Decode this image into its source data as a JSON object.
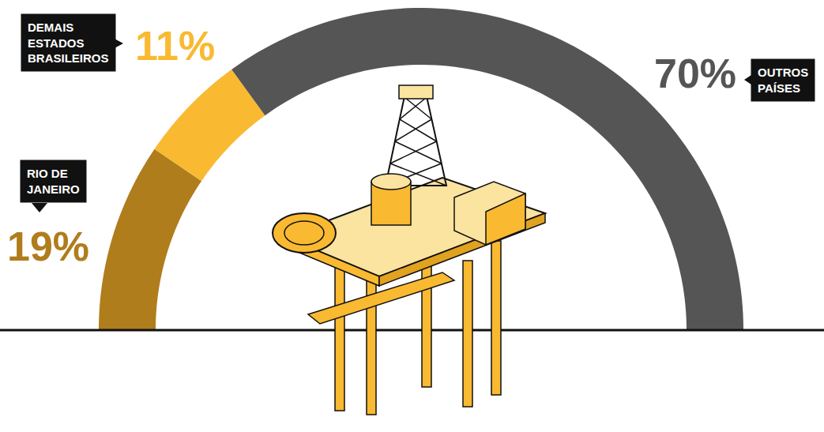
{
  "chart_data": {
    "type": "semicircle_donut",
    "categories": [
      "RIO DE JANEIRO",
      "DEMAIS ESTADOS BRASILEIROS",
      "OUTROS PAÍSES"
    ],
    "values": [
      19,
      11,
      70
    ],
    "value_labels": [
      "19%",
      "11%",
      "70%"
    ],
    "colors": [
      "#b07d1c",
      "#f9b931",
      "#555555"
    ],
    "data_labels": true,
    "tick_labels": false
  }
}
